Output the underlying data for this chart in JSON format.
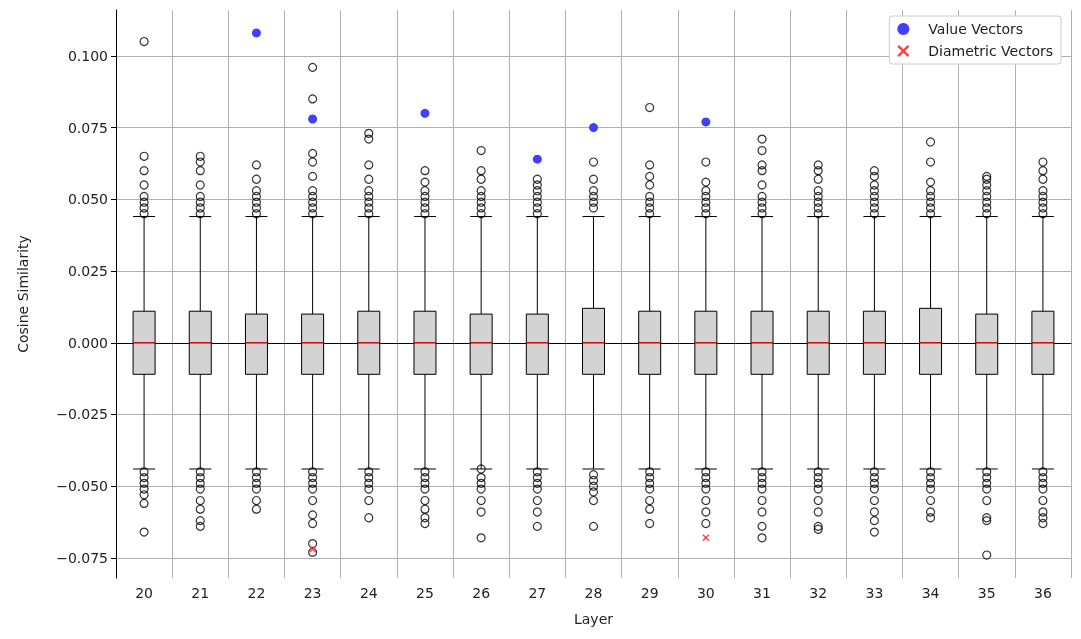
{
  "chart_data": {
    "type": "box",
    "xlabel": "Layer",
    "ylabel": "Cosine Similarity",
    "categories": [
      "20",
      "21",
      "22",
      "23",
      "24",
      "25",
      "26",
      "27",
      "28",
      "29",
      "30",
      "31",
      "32",
      "33",
      "34",
      "35",
      "36"
    ],
    "ylim": [
      -0.082,
      0.116
    ],
    "yticks": [
      {
        "value": -0.075,
        "label": "−0.075"
      },
      {
        "value": -0.05,
        "label": "−0.050"
      },
      {
        "value": -0.025,
        "label": "−0.025"
      },
      {
        "value": 0,
        "label": "0.000"
      },
      {
        "value": 0.025,
        "label": "0.025"
      },
      {
        "value": 0.05,
        "label": "0.050"
      },
      {
        "value": 0.075,
        "label": "0.075"
      },
      {
        "value": 0.1,
        "label": "0.100"
      }
    ],
    "grid": true,
    "legend": "top right",
    "series": [
      {
        "type": "box",
        "color": "#d3d3d3",
        "boxes": [
          {
            "low": -0.044,
            "q1": -0.011,
            "median": 0,
            "q3": 0.011,
            "high": 0.044,
            "outliers": [
              0.105,
              0.065,
              0.06,
              0.055,
              0.051,
              0.049,
              0.047,
              0.045,
              -0.045,
              -0.047,
              -0.049,
              -0.051,
              -0.053,
              -0.056,
              -0.066
            ]
          },
          {
            "low": -0.044,
            "q1": -0.011,
            "median": 0,
            "q3": 0.011,
            "high": 0.044,
            "outliers": [
              0.065,
              0.063,
              0.06,
              0.055,
              0.051,
              0.049,
              0.047,
              0.045,
              -0.045,
              -0.047,
              -0.049,
              -0.051,
              -0.055,
              -0.058,
              -0.062,
              -0.064
            ]
          },
          {
            "low": -0.044,
            "q1": -0.011,
            "median": 0,
            "q3": 0.01,
            "high": 0.044,
            "outliers": [
              0.062,
              0.057,
              0.053,
              0.051,
              0.049,
              0.047,
              0.045,
              -0.045,
              -0.047,
              -0.049,
              -0.051,
              -0.055,
              -0.058
            ]
          },
          {
            "low": -0.044,
            "q1": -0.011,
            "median": 0,
            "q3": 0.01,
            "high": 0.044,
            "outliers": [
              0.096,
              0.085,
              0.066,
              0.063,
              0.058,
              0.053,
              0.051,
              0.049,
              0.047,
              0.045,
              -0.045,
              -0.047,
              -0.049,
              -0.051,
              -0.055,
              -0.06,
              -0.063,
              -0.07,
              -0.073
            ]
          },
          {
            "low": -0.044,
            "q1": -0.011,
            "median": 0,
            "q3": 0.011,
            "high": 0.044,
            "outliers": [
              0.073,
              0.071,
              0.062,
              0.057,
              0.053,
              0.051,
              0.049,
              0.047,
              0.045,
              -0.045,
              -0.047,
              -0.049,
              -0.051,
              -0.055,
              -0.061
            ]
          },
          {
            "low": -0.044,
            "q1": -0.011,
            "median": 0,
            "q3": 0.011,
            "high": 0.044,
            "outliers": [
              0.06,
              0.056,
              0.053,
              0.051,
              0.049,
              0.047,
              0.045,
              -0.045,
              -0.047,
              -0.049,
              -0.051,
              -0.055,
              -0.058,
              -0.061,
              -0.063
            ]
          },
          {
            "low": -0.044,
            "q1": -0.011,
            "median": 0,
            "q3": 0.01,
            "high": 0.044,
            "outliers": [
              0.067,
              0.06,
              0.057,
              0.053,
              0.051,
              0.049,
              0.047,
              0.045,
              -0.044,
              -0.047,
              -0.049,
              -0.051,
              -0.055,
              -0.059,
              -0.068
            ]
          },
          {
            "low": -0.044,
            "q1": -0.011,
            "median": 0,
            "q3": 0.01,
            "high": 0.044,
            "outliers": [
              0.057,
              0.055,
              0.053,
              0.051,
              0.049,
              0.047,
              0.045,
              -0.045,
              -0.047,
              -0.049,
              -0.051,
              -0.055,
              -0.059,
              -0.064
            ]
          },
          {
            "low": -0.044,
            "q1": -0.011,
            "median": 0,
            "q3": 0.012,
            "high": 0.044,
            "outliers": [
              0.063,
              0.057,
              0.053,
              0.051,
              0.049,
              0.047,
              -0.046,
              -0.048,
              -0.05,
              -0.052,
              -0.055,
              -0.064
            ]
          },
          {
            "low": -0.044,
            "q1": -0.011,
            "median": 0,
            "q3": 0.011,
            "high": 0.044,
            "outliers": [
              0.082,
              0.062,
              0.058,
              0.055,
              0.051,
              0.049,
              0.047,
              0.045,
              -0.045,
              -0.047,
              -0.049,
              -0.051,
              -0.055,
              -0.058,
              -0.063
            ]
          },
          {
            "low": -0.044,
            "q1": -0.011,
            "median": 0,
            "q3": 0.011,
            "high": 0.044,
            "outliers": [
              0.063,
              0.056,
              0.053,
              0.051,
              0.049,
              0.047,
              0.045,
              -0.045,
              -0.047,
              -0.049,
              -0.051,
              -0.055,
              -0.059,
              -0.063
            ]
          },
          {
            "low": -0.044,
            "q1": -0.011,
            "median": 0,
            "q3": 0.011,
            "high": 0.044,
            "outliers": [
              0.071,
              0.067,
              0.062,
              0.06,
              0.055,
              0.051,
              0.049,
              0.047,
              0.045,
              -0.045,
              -0.047,
              -0.049,
              -0.051,
              -0.055,
              -0.059,
              -0.064,
              -0.068
            ]
          },
          {
            "low": -0.044,
            "q1": -0.011,
            "median": 0,
            "q3": 0.011,
            "high": 0.044,
            "outliers": [
              0.062,
              0.06,
              0.057,
              0.053,
              0.051,
              0.049,
              0.047,
              0.045,
              -0.045,
              -0.047,
              -0.049,
              -0.051,
              -0.055,
              -0.059,
              -0.064,
              -0.065
            ]
          },
          {
            "low": -0.044,
            "q1": -0.011,
            "median": 0,
            "q3": 0.011,
            "high": 0.044,
            "outliers": [
              0.06,
              0.058,
              0.055,
              0.053,
              0.051,
              0.049,
              0.047,
              0.045,
              -0.045,
              -0.047,
              -0.049,
              -0.051,
              -0.055,
              -0.059,
              -0.062,
              -0.066
            ]
          },
          {
            "low": -0.044,
            "q1": -0.011,
            "median": 0,
            "q3": 0.012,
            "high": 0.044,
            "outliers": [
              0.07,
              0.063,
              0.056,
              0.053,
              0.051,
              0.049,
              0.047,
              0.045,
              -0.045,
              -0.047,
              -0.049,
              -0.051,
              -0.055,
              -0.059,
              -0.061
            ]
          },
          {
            "low": -0.044,
            "q1": -0.011,
            "median": 0,
            "q3": 0.01,
            "high": 0.044,
            "outliers": [
              0.058,
              0.057,
              0.055,
              0.053,
              0.051,
              0.049,
              0.047,
              0.045,
              -0.045,
              -0.047,
              -0.049,
              -0.051,
              -0.055,
              -0.061,
              -0.062,
              -0.074
            ]
          },
          {
            "low": -0.044,
            "q1": -0.011,
            "median": 0,
            "q3": 0.011,
            "high": 0.044,
            "outliers": [
              0.063,
              0.06,
              0.057,
              0.053,
              0.051,
              0.049,
              0.047,
              0.045,
              -0.045,
              -0.047,
              -0.049,
              -0.051,
              -0.055,
              -0.059,
              -0.061,
              -0.063
            ]
          }
        ]
      },
      {
        "type": "scatter",
        "name": "Value Vectors",
        "color": "#4040ff",
        "marker": "circle",
        "x": [
          "22",
          "23",
          "25",
          "27",
          "28",
          "30"
        ],
        "values": [
          0.108,
          0.078,
          0.08,
          0.064,
          0.075,
          0.077
        ]
      },
      {
        "type": "scatter",
        "name": "Diametric Vectors",
        "color": "#ff4040",
        "marker": "cross",
        "x": [
          "23",
          "30"
        ],
        "values": [
          -0.072,
          -0.068
        ]
      }
    ]
  }
}
